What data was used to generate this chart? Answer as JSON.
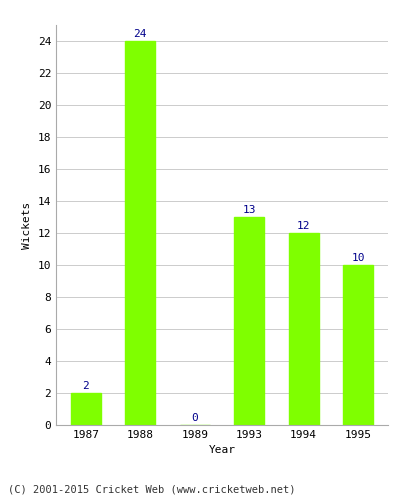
{
  "categories": [
    "1987",
    "1988",
    "1989",
    "1993",
    "1994",
    "1995"
  ],
  "values": [
    2,
    24,
    0,
    13,
    12,
    10
  ],
  "bar_color": "#7FFF00",
  "bar_edge_color": "#7FFF00",
  "label_color": "#00008B",
  "xlabel": "Year",
  "ylabel": "Wickets",
  "ylim": [
    0,
    25
  ],
  "yticks": [
    0,
    2,
    4,
    6,
    8,
    10,
    12,
    14,
    16,
    18,
    20,
    22,
    24
  ],
  "footer": "(C) 2001-2015 Cricket Web (www.cricketweb.net)",
  "bg_color": "#ffffff",
  "grid_color": "#cccccc",
  "label_fontsize": 8,
  "axis_fontsize": 8,
  "ylabel_fontsize": 8,
  "footer_fontsize": 7.5
}
